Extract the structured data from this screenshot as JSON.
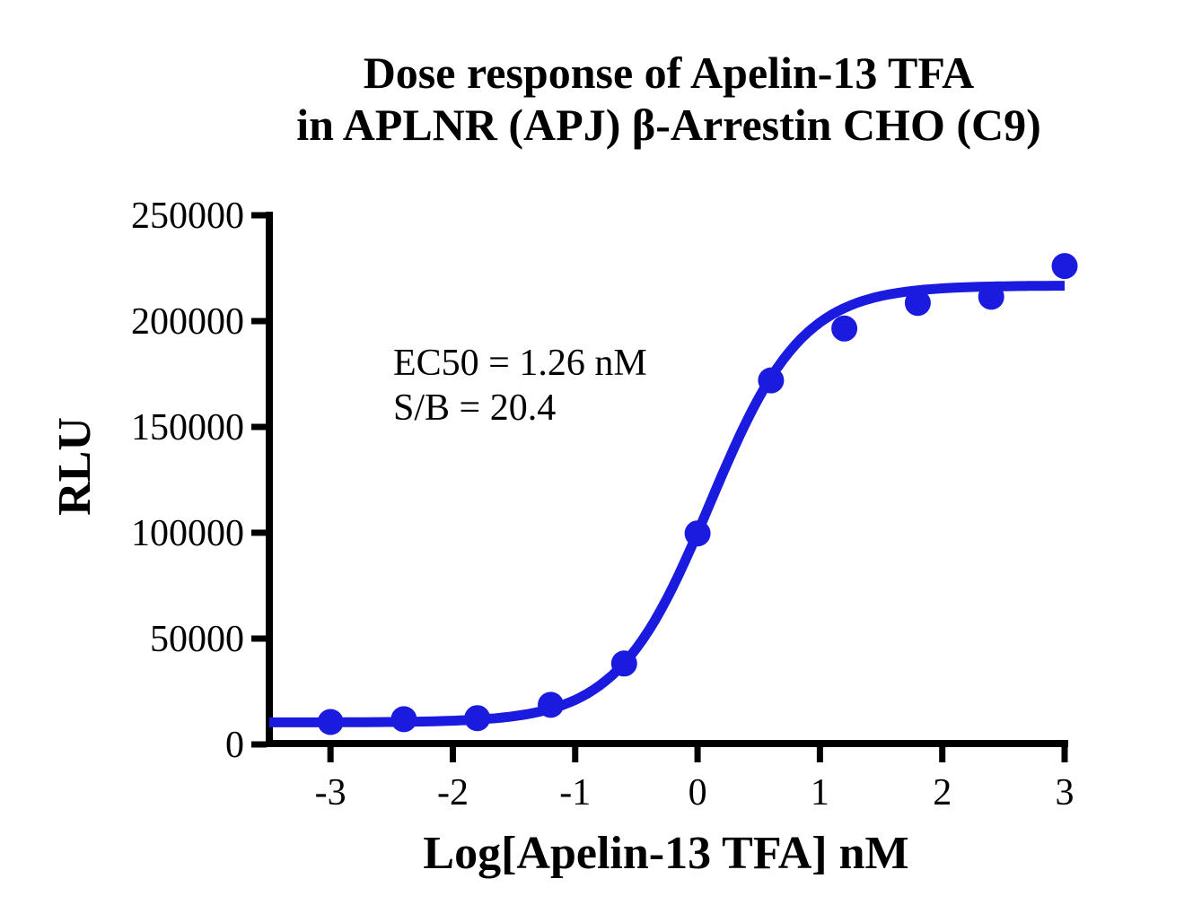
{
  "title": {
    "line1": "Dose response of Apelin-13 TFA",
    "line2": "in APLNR (APJ) β-Arrestin CHO (C9)"
  },
  "annotation": {
    "line1": "EC50 = 1.26 nM",
    "line2": "S/B = 20.4"
  },
  "colors": {
    "series": "#1b1be0",
    "axis": "#000000",
    "background": "#ffffff"
  },
  "chart_data": {
    "type": "scatter",
    "title": "Dose response of Apelin-13 TFA in APLNR (APJ) β-Arrestin CHO (C9)",
    "xlabel": "Log[Apelin-13 TFA] nM",
    "ylabel": "RLU",
    "xlim": [
      -3.5,
      3
    ],
    "ylim": [
      0,
      250000
    ],
    "x_ticks": [
      -3,
      -2,
      -1,
      0,
      1,
      2,
      3
    ],
    "y_ticks": [
      0,
      50000,
      100000,
      150000,
      200000,
      250000
    ],
    "grid": false,
    "legend_position": "none",
    "annotations": [
      "EC50 = 1.26 nM",
      "S/B = 20.4"
    ],
    "series": [
      {
        "name": "Apelin-13 TFA",
        "marker": "circle",
        "color": "#1b1be0",
        "x": [
          -3,
          -2.4,
          -1.8,
          -1.2,
          -0.6,
          0,
          0.6,
          1.2,
          1.8,
          2.4,
          3
        ],
        "y": [
          10600,
          11900,
          12400,
          18700,
          38200,
          99700,
          172000,
          196500,
          208600,
          211500,
          226000
        ]
      }
    ],
    "fit_curve": {
      "model": "4PL-sigmoid",
      "bottom": 10400,
      "top": 216800,
      "log_ec50": 0.1,
      "hill": 1.15,
      "x_start": -3.5,
      "x_end": 3
    }
  }
}
